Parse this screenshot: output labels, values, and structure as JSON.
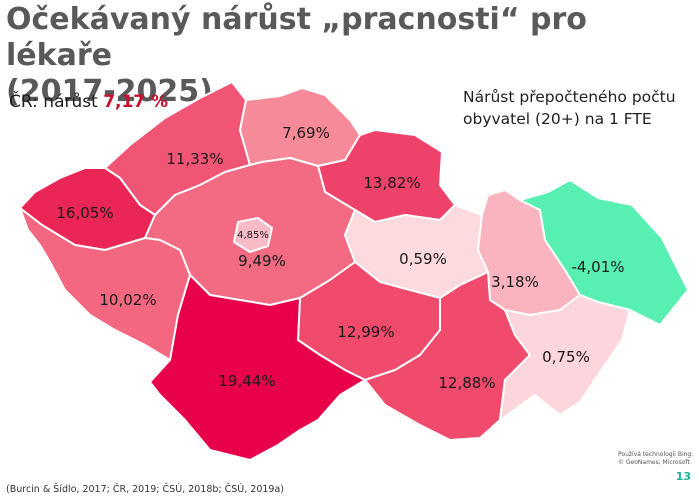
{
  "title_line1": "Očekávaný nárůst „pracnosti“ pro lékaře",
  "title_line2": "(2017-2025)",
  "national": {
    "label": "ČR: nárůst",
    "value": "7,17 %"
  },
  "note": {
    "line1": "Nárůst přepočteného počtu",
    "line2": "obyvatel (20+) na 1 FTE"
  },
  "regions": [
    {
      "key": "liberecky",
      "label": "7,69%",
      "value": 7.69,
      "color": "#f68a99"
    },
    {
      "key": "ustecky",
      "label": "11,33%",
      "value": 11.33,
      "color": "#f15575"
    },
    {
      "key": "karlovarsky",
      "label": "16,05%",
      "value": 16.05,
      "color": "#ea2656"
    },
    {
      "key": "kralovehradecky",
      "label": "13,82%",
      "value": 13.82,
      "color": "#ee426a"
    },
    {
      "key": "praha",
      "label": "4,85%",
      "value": 4.85,
      "color": "#f9bcc6"
    },
    {
      "key": "stredocesky",
      "label": "9,49%",
      "value": 9.49,
      "color": "#f36a83"
    },
    {
      "key": "pardubicky",
      "label": "0,59%",
      "value": 0.59,
      "color": "#fcdade"
    },
    {
      "key": "olomoucky",
      "label": "3,18%",
      "value": 3.18,
      "color": "#f9b4bf"
    },
    {
      "key": "moravskoslezsky",
      "label": "-4,01%",
      "value": -4.01,
      "color": "#58efb2"
    },
    {
      "key": "plzensky",
      "label": "10,02%",
      "value": 10.02,
      "color": "#f36880"
    },
    {
      "key": "vysocina",
      "label": "12,99%",
      "value": 12.99,
      "color": "#f04a6c"
    },
    {
      "key": "zlinsky",
      "label": "0,75%",
      "value": 0.75,
      "color": "#fcd6dc"
    },
    {
      "key": "jihocesky",
      "label": "19,44%",
      "value": 19.44,
      "color": "#e8004a"
    },
    {
      "key": "jihomoravsky",
      "label": "12,88%",
      "value": 12.88,
      "color": "#f04b6d"
    }
  ],
  "credit": {
    "line1": "Používá technologii Bing.",
    "line2": "© GeoNames, Microsoft"
  },
  "slide_number": "13",
  "source": "(Burcin & Šídlo, 2017; ČR, 2019; ČSÚ, 2018b; ČSÚ, 2019a)"
}
